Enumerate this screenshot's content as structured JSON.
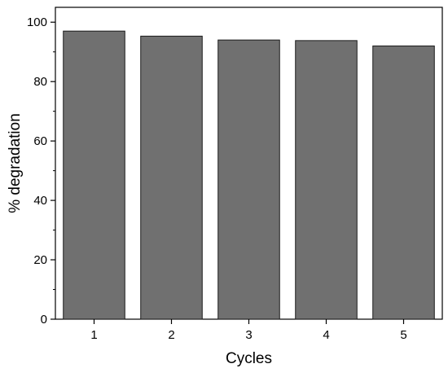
{
  "chart_data": {
    "type": "bar",
    "title": "",
    "xlabel": "Cycles",
    "ylabel": "% degradation",
    "categories": [
      "1",
      "2",
      "3",
      "4",
      "5"
    ],
    "values": [
      97,
      95.3,
      94,
      93.8,
      92
    ],
    "ylim": [
      0,
      105
    ],
    "yticks": [
      "0",
      "20",
      "40",
      "60",
      "80",
      "100"
    ],
    "grid": false,
    "legend": "none",
    "colors": {
      "bar_fill": "#707070",
      "bar_stroke": "#1a1a1a",
      "axis": "#000000",
      "background": "#ffffff"
    }
  }
}
